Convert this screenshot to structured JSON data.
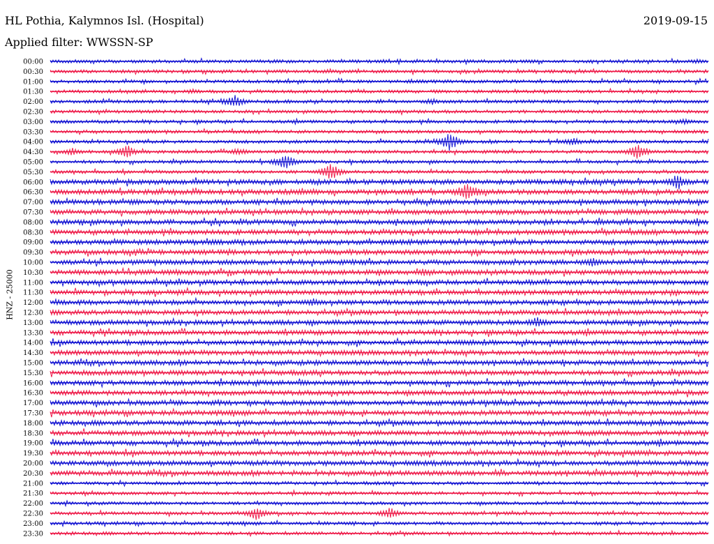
{
  "header": {
    "title": "HL Pothia, Kalymnos Isl. (Hospital)",
    "date": "2019-09-15",
    "filter": "Applied filter: WWSSN-SP",
    "channel_label": "HNZ - 25000"
  },
  "colors": {
    "blue": "#1414d2",
    "red": "#ee1c4a"
  },
  "chart_data": {
    "type": "line",
    "title": "HL Pothia, Kalymnos Isl. (Hospital)",
    "ylabel": "HNZ - 25000",
    "xlabel": "",
    "row_labels": [
      "00:00",
      "00:30",
      "01:00",
      "01:30",
      "02:00",
      "02:30",
      "03:00",
      "03:30",
      "04:00",
      "04:30",
      "05:00",
      "05:30",
      "06:00",
      "06:30",
      "07:00",
      "07:30",
      "08:00",
      "08:30",
      "09:00",
      "09:30",
      "10:00",
      "10:30",
      "11:00",
      "11:30",
      "12:00",
      "12:30",
      "13:00",
      "13:30",
      "14:00",
      "14:30",
      "15:00",
      "15:30",
      "16:00",
      "16:30",
      "17:00",
      "17:30",
      "18:00",
      "18:30",
      "19:00",
      "19:30",
      "20:00",
      "20:30",
      "21:00",
      "21:30",
      "22:00",
      "22:30",
      "23:00",
      "23:30"
    ],
    "row_colors": [
      "blue",
      "red"
    ],
    "row_duration_minutes": 30,
    "amplitude_base": [
      2,
      2,
      2,
      2,
      2,
      2,
      2,
      2,
      2,
      2,
      2,
      2,
      3,
      3,
      3,
      3,
      3,
      3,
      3,
      3,
      3,
      3,
      3,
      3,
      3,
      3,
      3,
      3,
      3,
      3,
      3,
      3,
      3,
      3,
      3,
      3,
      3,
      3,
      3,
      3,
      3,
      3,
      2,
      2,
      2,
      2,
      2,
      2
    ],
    "events": [
      {
        "row": "00:00",
        "minute": 29.5,
        "amplitude": 4
      },
      {
        "row": "01:30",
        "minute": 6.5,
        "amplitude": 4
      },
      {
        "row": "02:00",
        "minute": 8.4,
        "amplitude": 10
      },
      {
        "row": "02:00",
        "minute": 17.4,
        "amplitude": 5
      },
      {
        "row": "03:00",
        "minute": 29.0,
        "amplitude": 5
      },
      {
        "row": "04:00",
        "minute": 18.2,
        "amplitude": 14
      },
      {
        "row": "04:00",
        "minute": 23.8,
        "amplitude": 7
      },
      {
        "row": "04:30",
        "minute": 1.0,
        "amplitude": 6
      },
      {
        "row": "04:30",
        "minute": 3.5,
        "amplitude": 10
      },
      {
        "row": "04:30",
        "minute": 8.6,
        "amplitude": 6
      },
      {
        "row": "04:30",
        "minute": 26.8,
        "amplitude": 12
      },
      {
        "row": "05:00",
        "minute": 10.7,
        "amplitude": 12
      },
      {
        "row": "05:30",
        "minute": 12.8,
        "amplitude": 13
      },
      {
        "row": "06:00",
        "minute": 28.6,
        "amplitude": 12
      },
      {
        "row": "06:30",
        "minute": 19.0,
        "amplitude": 15
      },
      {
        "row": "08:30",
        "minute": 19.4,
        "amplitude": 5
      },
      {
        "row": "09:00",
        "minute": 7.5,
        "amplitude": 5
      },
      {
        "row": "10:00",
        "minute": 24.7,
        "amplitude": 9
      },
      {
        "row": "10:30",
        "minute": 17.0,
        "amplitude": 6
      },
      {
        "row": "12:00",
        "minute": 12.0,
        "amplitude": 6
      },
      {
        "row": "13:00",
        "minute": 22.2,
        "amplitude": 9
      },
      {
        "row": "22:30",
        "minute": 9.4,
        "amplitude": 10
      },
      {
        "row": "22:30",
        "minute": 15.5,
        "amplitude": 9
      }
    ]
  }
}
